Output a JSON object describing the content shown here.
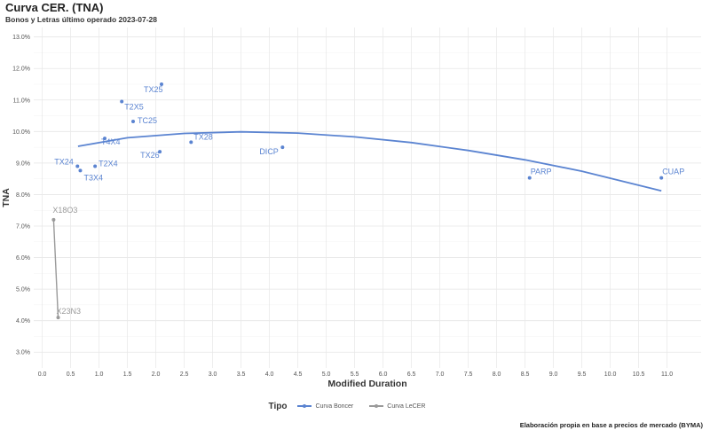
{
  "chart_data": {
    "type": "scatter",
    "title": "Curva CER. (TNA)",
    "subtitle": "Bonos y Letras último operado 2023-07-28",
    "xlabel": "Modified Duration",
    "ylabel": "TNA",
    "xlim": [
      -0.15,
      11.6
    ],
    "ylim": [
      2.5,
      13.3
    ],
    "x_ticks": [
      0.0,
      0.5,
      1.0,
      1.5,
      2.0,
      2.5,
      3.0,
      3.5,
      4.0,
      4.5,
      5.0,
      5.5,
      6.0,
      6.5,
      7.0,
      7.5,
      8.0,
      8.5,
      9.0,
      9.5,
      10.0,
      10.5,
      11.0
    ],
    "y_ticks": [
      3.0,
      4.0,
      5.0,
      6.0,
      7.0,
      8.0,
      9.0,
      10.0,
      11.0,
      12.0,
      13.0
    ],
    "grid": true,
    "legend_position": "bottom",
    "legend_title": "Tipo",
    "caption": "Elaboración propia en base a precios de mercado (BYMA)",
    "series": [
      {
        "name": "Curva Boncer",
        "color": "#5b84d1",
        "points": [
          {
            "label": "TX24",
            "x": 0.62,
            "y": 8.9
          },
          {
            "label": "T3X4",
            "x": 0.67,
            "y": 8.76
          },
          {
            "label": "T2X4",
            "x": 0.93,
            "y": 8.9
          },
          {
            "label": "T4X4",
            "x": 1.1,
            "y": 9.78
          },
          {
            "label": "T2X5",
            "x": 1.4,
            "y": 10.95
          },
          {
            "label": "TC25",
            "x": 1.6,
            "y": 10.32
          },
          {
            "label": "TX25",
            "x": 2.1,
            "y": 11.5
          },
          {
            "label": "TX26",
            "x": 2.07,
            "y": 9.36
          },
          {
            "label": "TX28",
            "x": 2.62,
            "y": 9.66
          },
          {
            "label": "DICP",
            "x": 4.23,
            "y": 9.5
          },
          {
            "label": "PARP",
            "x": 8.58,
            "y": 8.53
          },
          {
            "label": "CUAP",
            "x": 10.9,
            "y": 8.53
          }
        ],
        "fit": [
          {
            "x": 0.63,
            "y": 9.53
          },
          {
            "x": 1.5,
            "y": 9.8
          },
          {
            "x": 2.5,
            "y": 9.94
          },
          {
            "x": 3.5,
            "y": 9.99
          },
          {
            "x": 4.5,
            "y": 9.95
          },
          {
            "x": 5.5,
            "y": 9.83
          },
          {
            "x": 6.5,
            "y": 9.65
          },
          {
            "x": 7.5,
            "y": 9.4
          },
          {
            "x": 8.5,
            "y": 9.1
          },
          {
            "x": 9.5,
            "y": 8.74
          },
          {
            "x": 10.9,
            "y": 8.12
          }
        ]
      },
      {
        "name": "Curva LeCER",
        "color": "#9a9a9a",
        "points": [
          {
            "label": "X18O3",
            "x": 0.2,
            "y": 7.2
          },
          {
            "label": "X23N3",
            "x": 0.28,
            "y": 4.1
          }
        ],
        "fit": [
          {
            "x": 0.2,
            "y": 7.2
          },
          {
            "x": 0.28,
            "y": 4.1
          }
        ]
      }
    ]
  }
}
